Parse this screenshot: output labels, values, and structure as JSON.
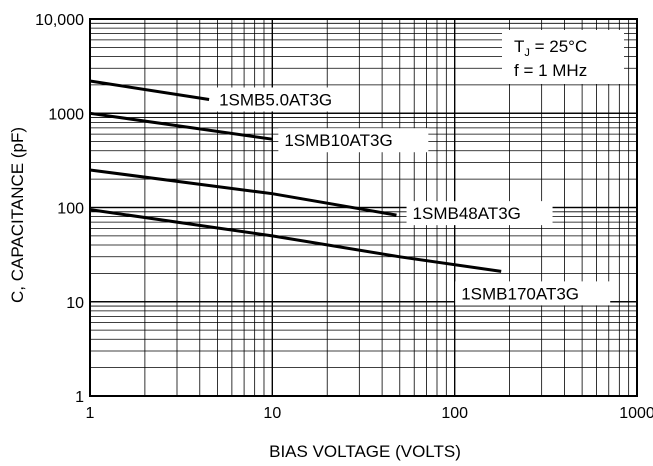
{
  "chart_data": {
    "type": "line",
    "x_scale": "log",
    "y_scale": "log",
    "xlim": [
      1,
      1000
    ],
    "ylim": [
      1,
      10000
    ],
    "xlabel": "BIAS VOLTAGE (VOLTS)",
    "ylabel": "C, CAPACITANCE (pF)",
    "x_ticks": [
      "1",
      "10",
      "100",
      "1000"
    ],
    "y_ticks": [
      "1",
      "10",
      "100",
      "1000",
      "10,000"
    ],
    "grid": "log minor and major",
    "conditions": {
      "tj_main": "T",
      "tj_sub": "J",
      "tj_rest": " = 25°C",
      "freq": "f = 1 MHz"
    },
    "series": [
      {
        "name": "1SMB5.0AT3G",
        "x": [
          1,
          4.5
        ],
        "y": [
          2200,
          1400
        ]
      },
      {
        "name": "1SMB10AT3G",
        "x": [
          1,
          10
        ],
        "y": [
          1000,
          530
        ]
      },
      {
        "name": "1SMB48AT3G",
        "x": [
          1,
          10,
          48
        ],
        "y": [
          250,
          140,
          83
        ]
      },
      {
        "name": "1SMB170AT3G",
        "x": [
          1,
          10,
          50,
          180
        ],
        "y": [
          95,
          50,
          30,
          21
        ]
      }
    ]
  }
}
